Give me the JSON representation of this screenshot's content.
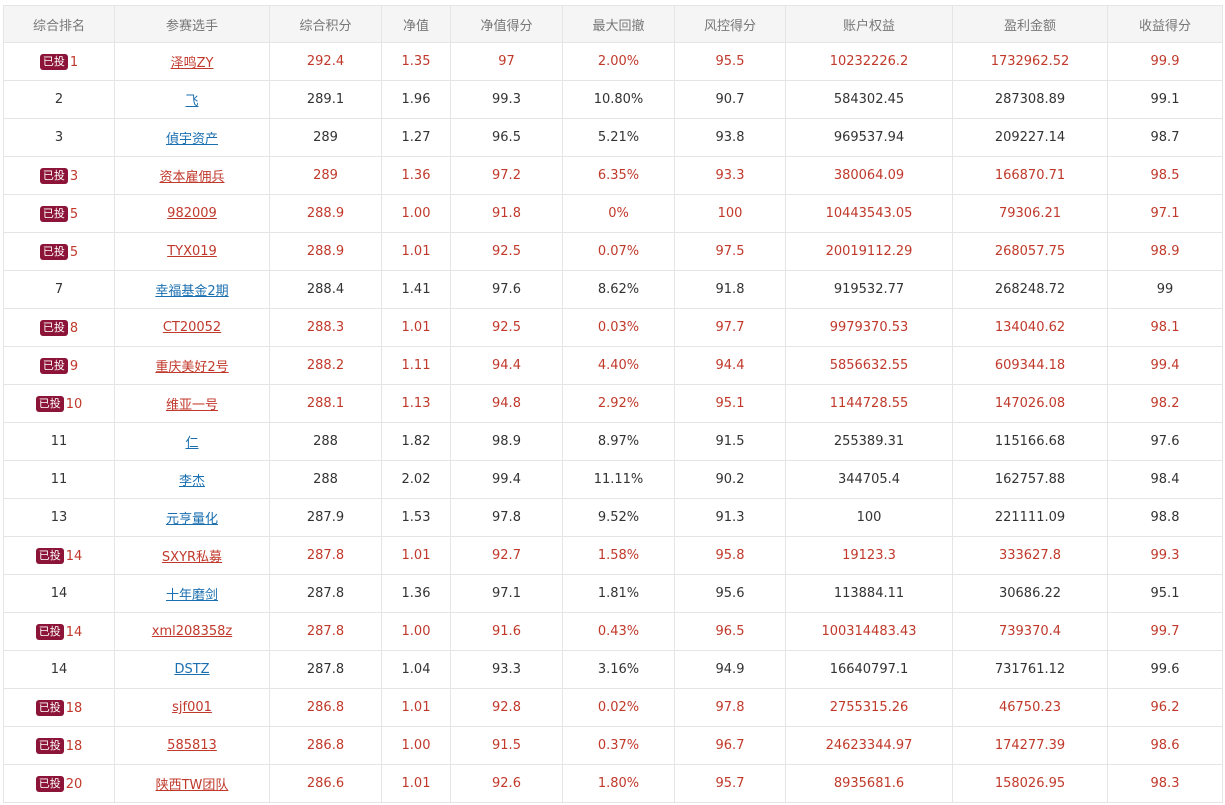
{
  "table": {
    "headers": [
      "综合排名",
      "参赛选手",
      "综合积分",
      "净值",
      "净值得分",
      "最大回撤",
      "风控得分",
      "账户权益",
      "盈利金额",
      "收益得分"
    ],
    "invested_label": "已投",
    "rows": [
      {
        "rank": "1",
        "name": "泽鸣ZY",
        "score": "292.4",
        "nav": "1.35",
        "nav_score": "97",
        "drawdown": "2.00%",
        "risk_score": "95.5",
        "equity": "10232226.2",
        "profit": "1732962.52",
        "return_score": "99.9",
        "invested": true
      },
      {
        "rank": "2",
        "name": "飞",
        "score": "289.1",
        "nav": "1.96",
        "nav_score": "99.3",
        "drawdown": "10.80%",
        "risk_score": "90.7",
        "equity": "584302.45",
        "profit": "287308.89",
        "return_score": "99.1",
        "invested": false
      },
      {
        "rank": "3",
        "name": "偵宇资产",
        "score": "289",
        "nav": "1.27",
        "nav_score": "96.5",
        "drawdown": "5.21%",
        "risk_score": "93.8",
        "equity": "969537.94",
        "profit": "209227.14",
        "return_score": "98.7",
        "invested": false
      },
      {
        "rank": "3",
        "name": "资本雇佣兵",
        "score": "289",
        "nav": "1.36",
        "nav_score": "97.2",
        "drawdown": "6.35%",
        "risk_score": "93.3",
        "equity": "380064.09",
        "profit": "166870.71",
        "return_score": "98.5",
        "invested": true
      },
      {
        "rank": "5",
        "name": "982009",
        "score": "288.9",
        "nav": "1.00",
        "nav_score": "91.8",
        "drawdown": "0%",
        "risk_score": "100",
        "equity": "10443543.05",
        "profit": "79306.21",
        "return_score": "97.1",
        "invested": true
      },
      {
        "rank": "5",
        "name": "TYX019",
        "score": "288.9",
        "nav": "1.01",
        "nav_score": "92.5",
        "drawdown": "0.07%",
        "risk_score": "97.5",
        "equity": "20019112.29",
        "profit": "268057.75",
        "return_score": "98.9",
        "invested": true
      },
      {
        "rank": "7",
        "name": "幸福基金2期",
        "score": "288.4",
        "nav": "1.41",
        "nav_score": "97.6",
        "drawdown": "8.62%",
        "risk_score": "91.8",
        "equity": "919532.77",
        "profit": "268248.72",
        "return_score": "99",
        "invested": false
      },
      {
        "rank": "8",
        "name": "CT20052",
        "score": "288.3",
        "nav": "1.01",
        "nav_score": "92.5",
        "drawdown": "0.03%",
        "risk_score": "97.7",
        "equity": "9979370.53",
        "profit": "134040.62",
        "return_score": "98.1",
        "invested": true
      },
      {
        "rank": "9",
        "name": "重庆美好2号",
        "score": "288.2",
        "nav": "1.11",
        "nav_score": "94.4",
        "drawdown": "4.40%",
        "risk_score": "94.4",
        "equity": "5856632.55",
        "profit": "609344.18",
        "return_score": "99.4",
        "invested": true
      },
      {
        "rank": "10",
        "name": "维亚一号",
        "score": "288.1",
        "nav": "1.13",
        "nav_score": "94.8",
        "drawdown": "2.92%",
        "risk_score": "95.1",
        "equity": "1144728.55",
        "profit": "147026.08",
        "return_score": "98.2",
        "invested": true
      },
      {
        "rank": "11",
        "name": "仁",
        "score": "288",
        "nav": "1.82",
        "nav_score": "98.9",
        "drawdown": "8.97%",
        "risk_score": "91.5",
        "equity": "255389.31",
        "profit": "115166.68",
        "return_score": "97.6",
        "invested": false
      },
      {
        "rank": "11",
        "name": "李杰",
        "score": "288",
        "nav": "2.02",
        "nav_score": "99.4",
        "drawdown": "11.11%",
        "risk_score": "90.2",
        "equity": "344705.4",
        "profit": "162757.88",
        "return_score": "98.4",
        "invested": false
      },
      {
        "rank": "13",
        "name": "元亨量化",
        "score": "287.9",
        "nav": "1.53",
        "nav_score": "97.8",
        "drawdown": "9.52%",
        "risk_score": "91.3",
        "equity": "100",
        "profit": "221111.09",
        "return_score": "98.8",
        "invested": false
      },
      {
        "rank": "14",
        "name": "SXYR私募",
        "score": "287.8",
        "nav": "1.01",
        "nav_score": "92.7",
        "drawdown": "1.58%",
        "risk_score": "95.8",
        "equity": "19123.3",
        "profit": "333627.8",
        "return_score": "99.3",
        "invested": true
      },
      {
        "rank": "14",
        "name": "十年磨剑",
        "score": "287.8",
        "nav": "1.36",
        "nav_score": "97.1",
        "drawdown": "1.81%",
        "risk_score": "95.6",
        "equity": "113884.11",
        "profit": "30686.22",
        "return_score": "95.1",
        "invested": false
      },
      {
        "rank": "14",
        "name": "xml208358z",
        "score": "287.8",
        "nav": "1.00",
        "nav_score": "91.6",
        "drawdown": "0.43%",
        "risk_score": "96.5",
        "equity": "100314483.43",
        "profit": "739370.4",
        "return_score": "99.7",
        "invested": true
      },
      {
        "rank": "14",
        "name": "DSTZ",
        "score": "287.8",
        "nav": "1.04",
        "nav_score": "93.3",
        "drawdown": "3.16%",
        "risk_score": "94.9",
        "equity": "16640797.1",
        "profit": "731761.12",
        "return_score": "99.6",
        "invested": false
      },
      {
        "rank": "18",
        "name": "sjf001",
        "score": "286.8",
        "nav": "1.01",
        "nav_score": "92.8",
        "drawdown": "0.02%",
        "risk_score": "97.8",
        "equity": "2755315.26",
        "profit": "46750.23",
        "return_score": "96.2",
        "invested": true
      },
      {
        "rank": "18",
        "name": "585813",
        "score": "286.8",
        "nav": "1.00",
        "nav_score": "91.5",
        "drawdown": "0.37%",
        "risk_score": "96.7",
        "equity": "24623344.97",
        "profit": "174277.39",
        "return_score": "98.6",
        "invested": true
      },
      {
        "rank": "20",
        "name": "陕西TW团队",
        "score": "286.6",
        "nav": "1.01",
        "nav_score": "92.6",
        "drawdown": "1.80%",
        "risk_score": "95.7",
        "equity": "8935681.6",
        "profit": "158026.95",
        "return_score": "98.3",
        "invested": true
      }
    ]
  },
  "colors": {
    "invested_text": "#c0392b",
    "badge_bg": "#8c1438",
    "link_blue": "#1a6fb0",
    "header_bg": "#f5f5f5"
  }
}
